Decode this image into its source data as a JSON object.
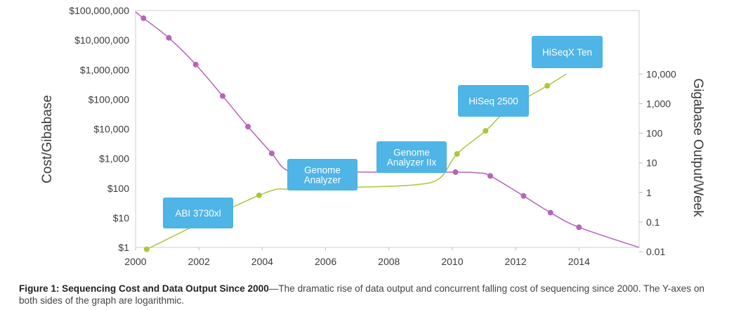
{
  "chart_data": {
    "type": "line",
    "x_ticks": [
      "2000",
      "2002",
      "2004",
      "2006",
      "2008",
      "2010",
      "2012",
      "2014"
    ],
    "x_domain": [
      2000,
      2015.9
    ],
    "y_left": {
      "label": "Cost/Gibabase",
      "scale": "log",
      "ticks": [
        "$1",
        "$10",
        "$100",
        "$1,000",
        "$10,000",
        "$100,000",
        "$1,000,000",
        "$10,000,000",
        "$100,000,000"
      ],
      "range": [
        1,
        100000000
      ]
    },
    "y_right": {
      "label": "Gigabase Output/Week",
      "scale": "log",
      "ticks": [
        "0.01",
        "0.1",
        "1",
        "10",
        "100",
        "1,000",
        "10,000"
      ],
      "range": [
        0.01,
        10000
      ]
    },
    "series": [
      {
        "axis": "left",
        "color": "#b565b8",
        "points": [
          [
            2000.25,
            55000000
          ],
          [
            2001.05,
            12000000
          ],
          [
            2001.9,
            1500000
          ],
          [
            2002.75,
            130000
          ],
          [
            2003.55,
            12000
          ],
          [
            2004.3,
            1500
          ],
          [
            2010.1,
            350
          ],
          [
            2011.2,
            260
          ],
          [
            2012.25,
            55
          ],
          [
            2013.1,
            15
          ],
          [
            2014.0,
            4.8
          ]
        ],
        "curve": [
          [
            2000,
            90000000
          ],
          [
            2000.25,
            55000000
          ],
          [
            2001.05,
            12000000
          ],
          [
            2001.9,
            1500000
          ],
          [
            2002.75,
            130000
          ],
          [
            2003.55,
            12000
          ],
          [
            2004.3,
            1500
          ],
          [
            2004.8,
            400
          ],
          [
            2005.8,
            360
          ],
          [
            2007.5,
            350
          ],
          [
            2010.1,
            350
          ],
          [
            2010.8,
            330
          ],
          [
            2011.2,
            260
          ],
          [
            2012.25,
            55
          ],
          [
            2013.1,
            15
          ],
          [
            2014.0,
            4.8
          ],
          [
            2015.9,
            1
          ]
        ]
      },
      {
        "axis": "right",
        "color": "#a8c83a",
        "points": [
          [
            2000.35,
            0.012
          ],
          [
            2003.9,
            0.8
          ],
          [
            2010.15,
            20
          ],
          [
            2011.05,
            120
          ],
          [
            2013.0,
            4000
          ]
        ],
        "curve": [
          [
            2000.35,
            0.012
          ],
          [
            2003.9,
            0.8
          ],
          [
            2005.0,
            1.3
          ],
          [
            2007.0,
            1.5
          ],
          [
            2008.8,
            1.8
          ],
          [
            2009.6,
            3
          ],
          [
            2010.15,
            20
          ],
          [
            2011.05,
            120
          ],
          [
            2011.8,
            700
          ],
          [
            2013.0,
            4000
          ],
          [
            2013.6,
            10000
          ]
        ]
      }
    ],
    "annotations": [
      {
        "text": [
          "ABI 3730xl"
        ],
        "color": "#4fb4e6"
      },
      {
        "text": [
          "Genome",
          "Analyzer"
        ],
        "color": "#4fb4e6"
      },
      {
        "text": [
          "Genome",
          "Analyzer IIx"
        ],
        "color": "#4fb4e6"
      },
      {
        "text": [
          "HiSeq 2500"
        ],
        "color": "#4fb4e6"
      },
      {
        "text": [
          "HiSeqX Ten"
        ],
        "color": "#4fb4e6"
      }
    ]
  },
  "caption": {
    "bold": "Figure 1: Sequencing Cost and Data Output Since 2000",
    "text": "—The dramatic rise of data output and concurrent falling cost of sequencing since 2000. The Y-axes on both sides of the graph are logarithmic."
  }
}
